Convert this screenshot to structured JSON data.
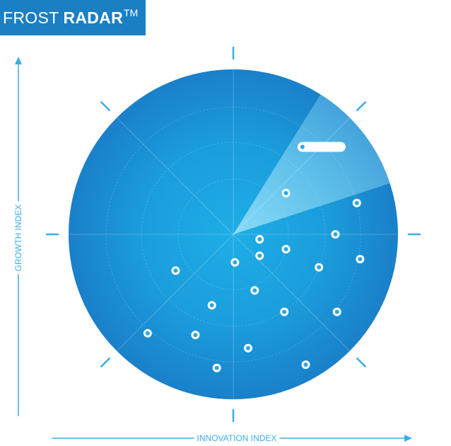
{
  "header": {
    "title_light": "FROST",
    "title_bold": "RADAR",
    "title_tm": "TM"
  },
  "axes": {
    "y_label": "GROWTH INDEX",
    "x_label": "INNOVATION INDEX"
  },
  "colors": {
    "title_bg": "#1b7fc4",
    "axis": "#39aee8",
    "radar_inner": "#1ba6e2",
    "radar_outer": "#1a7fc8",
    "sweep": "#7fd4f3",
    "marker": "#ffffff"
  },
  "chart_data": {
    "type": "scatter",
    "series": [
      {
        "points": [
          {
            "x": 0.42,
            "y": 0.53
          },
          {
            "x": 0.32,
            "y": 0.25
          },
          {
            "x": 0.75,
            "y": 0.19
          },
          {
            "x": 0.16,
            "y": -0.03
          },
          {
            "x": 0.32,
            "y": -0.09
          },
          {
            "x": 0.62,
            "y": 0.0
          },
          {
            "x": 0.16,
            "y": -0.13
          },
          {
            "x": 0.32,
            "y": -0.09
          },
          {
            "x": 0.52,
            "y": -0.2
          },
          {
            "x": 0.77,
            "y": -0.15
          },
          {
            "x": -0.35,
            "y": -0.22
          },
          {
            "x": 0.01,
            "y": -0.17
          },
          {
            "x": 0.13,
            "y": -0.34
          },
          {
            "x": -0.13,
            "y": -0.43
          },
          {
            "x": 0.31,
            "y": -0.47
          },
          {
            "x": 0.63,
            "y": -0.47
          },
          {
            "x": -0.52,
            "y": -0.6
          },
          {
            "x": -0.23,
            "y": -0.61
          },
          {
            "x": 0.09,
            "y": -0.69
          },
          {
            "x": -0.1,
            "y": -0.81
          },
          {
            "x": 0.44,
            "y": -0.79
          }
        ]
      }
    ],
    "highlight_index": 0
  }
}
